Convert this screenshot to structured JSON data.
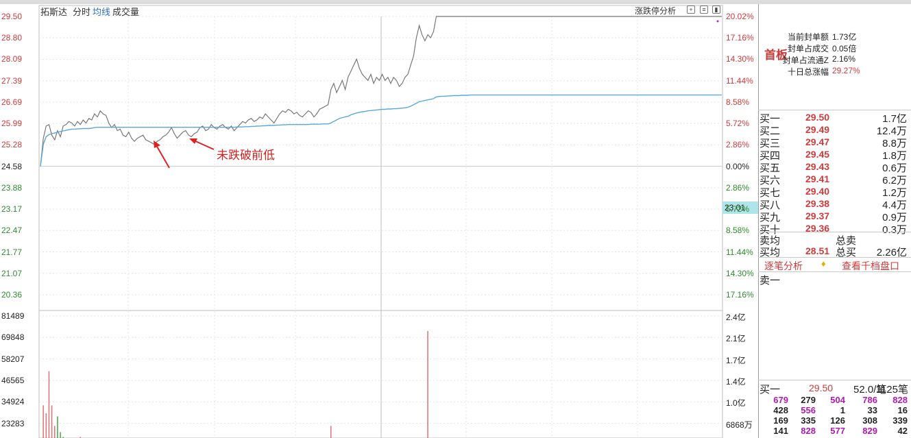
{
  "header": {
    "stock_name": "拓斯达",
    "tab_timeshare": "分时",
    "tab_avg": "均线",
    "tab_volume": "成交量",
    "limit_analysis": "涨跌停分析"
  },
  "price_axis_left": [
    "29.50",
    "28.80",
    "28.09",
    "27.39",
    "26.69",
    "25.99",
    "25.28",
    "24.58",
    "23.88",
    "23.17",
    "22.47",
    "21.77",
    "21.07",
    "20.36"
  ],
  "pct_axis_right": [
    "20.02%",
    "17.16%",
    "14.30%",
    "11.44%",
    "8.58%",
    "5.72%",
    "2.86%",
    "0.00%",
    "2.86%",
    "5.72%",
    "8.58%",
    "11.44%",
    "14.30%",
    "17.16%"
  ],
  "cursor_value": "23.01",
  "volume_axis_left": [
    "81489",
    "69848",
    "58207",
    "46565",
    "34924",
    "23283"
  ],
  "volume_axis_right": [
    "2.4亿",
    "2.1亿",
    "1.7亿",
    "1.4亿",
    "1.0亿",
    "6868万"
  ],
  "annotation": "未跌破前低",
  "board": {
    "title": "首板",
    "info": [
      {
        "label": "当前封单额",
        "value": "1.73亿"
      },
      {
        "label": "封单占成交",
        "value": "0.05倍"
      },
      {
        "label": "封单占流通Z",
        "value": "2.16%"
      },
      {
        "label": "十日总涨幅",
        "value": "29.27%"
      }
    ]
  },
  "order_book": [
    {
      "label": "买一",
      "price": "29.50",
      "vol": "1.7亿"
    },
    {
      "label": "买二",
      "price": "29.49",
      "vol": "12.4万"
    },
    {
      "label": "买三",
      "price": "29.47",
      "vol": "8.8万"
    },
    {
      "label": "买四",
      "price": "29.45",
      "vol": "1.8万"
    },
    {
      "label": "买五",
      "price": "29.43",
      "vol": "0.6万"
    },
    {
      "label": "买六",
      "price": "29.41",
      "vol": "6.2万"
    },
    {
      "label": "买七",
      "price": "29.40",
      "vol": "1.2万"
    },
    {
      "label": "买八",
      "price": "29.38",
      "vol": "4.4万"
    },
    {
      "label": "买九",
      "price": "29.37",
      "vol": "0.9万"
    },
    {
      "label": "买十",
      "price": "29.36",
      "vol": "0.3万"
    }
  ],
  "summary": {
    "sell_avg_label": "卖均",
    "sell_total_label": "总卖",
    "buy_avg_label": "买均",
    "buy_avg_price": "28.51",
    "buy_total_label": "总买",
    "buy_total_value": "2.26亿"
  },
  "links": {
    "trade_detail": "逐笔分析",
    "view_depth": "查看千档盘口"
  },
  "sell_one_label": "卖一",
  "queue": {
    "label": "买一",
    "price": "29.50",
    "per_trade": "52.0/笔",
    "count": "1125笔",
    "rows": [
      [
        {
          "v": "679",
          "c": "p"
        },
        {
          "v": "279",
          "c": "k"
        },
        {
          "v": "504",
          "c": "p"
        },
        {
          "v": "786",
          "c": "p"
        },
        {
          "v": "828",
          "c": "p"
        }
      ],
      [
        {
          "v": "428",
          "c": "k"
        },
        {
          "v": "556",
          "c": "p"
        },
        {
          "v": "1",
          "c": "k"
        },
        {
          "v": "33",
          "c": "k"
        },
        {
          "v": "16",
          "c": "k"
        }
      ],
      [
        {
          "v": "169",
          "c": "k"
        },
        {
          "v": "335",
          "c": "k"
        },
        {
          "v": "126",
          "c": "k"
        },
        {
          "v": "308",
          "c": "k"
        },
        {
          "v": "339",
          "c": "k"
        }
      ],
      [
        {
          "v": "141",
          "c": "k"
        },
        {
          "v": "828",
          "c": "p"
        },
        {
          "v": "577",
          "c": "p"
        },
        {
          "v": "829",
          "c": "p"
        },
        {
          "v": "42",
          "c": "k"
        }
      ]
    ]
  },
  "colors": {
    "up": "#d03a3a",
    "down": "#2e8a2e",
    "price_line": "#777777",
    "avg_line": "#5aa8d8",
    "accent": "#2f6fc0"
  },
  "chart_data": {
    "type": "line",
    "title": "",
    "ylim": [
      20.36,
      29.5
    ],
    "series": [
      {
        "name": "分时",
        "values": [
          24.58,
          25.5,
          25.9,
          25.95,
          25.6,
          25.45,
          25.75,
          25.55,
          25.9,
          25.95,
          26.05,
          26.0,
          25.9,
          26.05,
          25.95,
          26.1,
          26.0,
          26.15,
          26.1,
          26.3,
          26.2,
          26.4,
          26.3,
          26.25,
          26.0,
          25.85,
          25.95,
          25.75,
          25.8,
          25.6,
          25.55,
          25.7,
          25.5,
          25.4,
          25.5,
          25.55,
          25.6,
          25.45,
          25.4,
          25.35,
          25.3,
          25.4,
          25.45,
          25.55,
          25.6,
          25.7,
          25.85,
          25.65,
          25.5,
          25.6,
          25.7,
          25.75,
          25.6,
          25.55,
          25.65,
          25.7,
          25.85,
          25.9,
          25.75,
          25.8,
          25.95,
          25.85,
          25.8,
          25.9,
          25.95,
          25.85,
          25.8,
          25.9,
          25.75,
          25.85,
          25.95,
          26.05,
          26.0,
          26.1,
          26.15,
          26.05,
          26.1,
          26.2,
          26.15,
          26.3,
          26.2,
          26.1,
          26.0,
          26.15,
          26.3,
          26.4,
          26.35,
          26.45,
          26.4,
          26.3,
          26.35,
          26.25,
          26.2,
          26.3,
          26.4,
          26.35,
          26.2,
          26.3,
          26.45,
          26.5,
          26.55,
          26.6,
          27.1,
          27.3,
          27.0,
          27.2,
          27.4,
          27.1,
          27.5,
          27.7,
          27.9,
          28.1,
          27.8,
          27.6,
          27.5,
          27.4,
          27.6,
          27.3,
          27.5,
          27.4,
          27.6,
          27.4,
          27.5,
          27.3,
          27.5,
          27.4,
          27.2,
          27.3,
          27.5,
          27.6,
          27.9,
          28.2,
          28.8,
          29.2,
          28.9,
          28.7,
          28.9,
          28.8,
          29.0,
          29.5,
          29.5,
          29.5,
          29.5,
          29.5,
          29.5,
          29.5,
          29.5,
          29.5,
          29.5,
          29.5,
          29.5,
          29.5,
          29.5,
          29.5
        ]
      },
      {
        "name": "均线",
        "values": [
          24.58,
          25.3,
          25.55,
          25.62,
          25.65,
          25.67,
          25.7,
          25.72,
          25.74,
          25.76,
          25.78,
          25.8,
          25.8,
          25.81,
          25.81,
          25.82,
          25.82,
          25.82,
          25.83,
          25.85,
          25.86,
          25.86,
          25.86,
          25.86,
          25.86,
          25.86,
          25.86,
          25.86,
          25.86,
          25.86,
          25.86,
          25.86,
          25.86,
          25.86,
          25.86,
          25.86,
          25.86,
          25.86,
          25.86,
          25.86,
          25.86,
          25.86,
          25.86,
          25.86,
          25.86,
          25.86,
          25.86,
          25.86,
          25.86,
          25.86,
          25.86,
          25.86,
          25.86,
          25.86,
          25.86,
          25.86,
          25.86,
          25.86,
          25.86,
          25.86,
          25.86,
          25.86,
          25.86,
          25.86,
          25.86,
          25.86,
          25.86,
          25.86,
          25.86,
          25.87,
          25.87,
          25.87,
          25.88,
          25.88,
          25.89,
          25.89,
          25.9,
          25.9,
          25.91,
          25.91,
          25.92,
          25.92,
          25.92,
          25.93,
          25.93,
          25.94,
          25.94,
          25.95,
          25.95,
          25.95,
          25.95,
          25.95,
          25.95,
          25.95,
          25.95,
          25.96,
          25.96,
          25.96,
          25.96,
          25.97,
          25.97,
          25.97,
          26.0,
          26.05,
          26.1,
          26.15,
          26.18,
          26.2,
          26.22,
          26.27,
          26.3,
          26.33,
          26.35,
          26.37,
          26.38,
          26.4,
          26.41,
          26.42,
          26.43,
          26.44,
          26.45,
          26.45,
          26.46,
          26.46,
          26.47,
          26.47,
          26.48,
          26.49,
          26.5,
          26.52,
          26.55,
          26.6,
          26.65,
          26.7,
          26.72,
          26.74,
          26.76,
          26.78,
          26.8,
          26.86,
          26.87,
          26.88,
          26.88,
          26.89,
          26.89,
          26.9,
          26.9,
          26.9,
          26.91,
          26.91,
          26.91,
          26.92,
          26.92,
          26.92
        ]
      }
    ],
    "volume": {
      "ylim": [
        0,
        81489
      ],
      "bars": [
        {
          "i": 1,
          "v": 25000,
          "c": "up"
        },
        {
          "i": 2,
          "v": 20000,
          "c": "up"
        },
        {
          "i": 3,
          "v": 46565,
          "c": "up"
        },
        {
          "i": 4,
          "v": 25000,
          "c": "up"
        },
        {
          "i": 5,
          "v": 12000,
          "c": "up"
        },
        {
          "i": 6,
          "v": 18000,
          "c": "down"
        },
        {
          "i": 7,
          "v": 8000,
          "c": "down"
        },
        {
          "i": 8,
          "v": 5000,
          "c": "down"
        },
        {
          "i": 12,
          "v": 3000,
          "c": "up"
        },
        {
          "i": 14,
          "v": 5000,
          "c": "up"
        },
        {
          "i": 15,
          "v": 3000,
          "c": "down"
        },
        {
          "i": 16,
          "v": 2000,
          "c": "up"
        },
        {
          "i": 30,
          "v": 2500,
          "c": "up"
        },
        {
          "i": 31,
          "v": 2000,
          "c": "down"
        },
        {
          "i": 32,
          "v": 2500,
          "c": "up"
        },
        {
          "i": 33,
          "v": 1500,
          "c": "up"
        },
        {
          "i": 102,
          "v": 12000,
          "c": "up"
        },
        {
          "i": 103,
          "v": 3000,
          "c": "up"
        },
        {
          "i": 110,
          "v": 2000,
          "c": "down"
        },
        {
          "i": 123,
          "v": 4000,
          "c": "up"
        },
        {
          "i": 136,
          "v": 72000,
          "c": "up"
        }
      ]
    }
  }
}
